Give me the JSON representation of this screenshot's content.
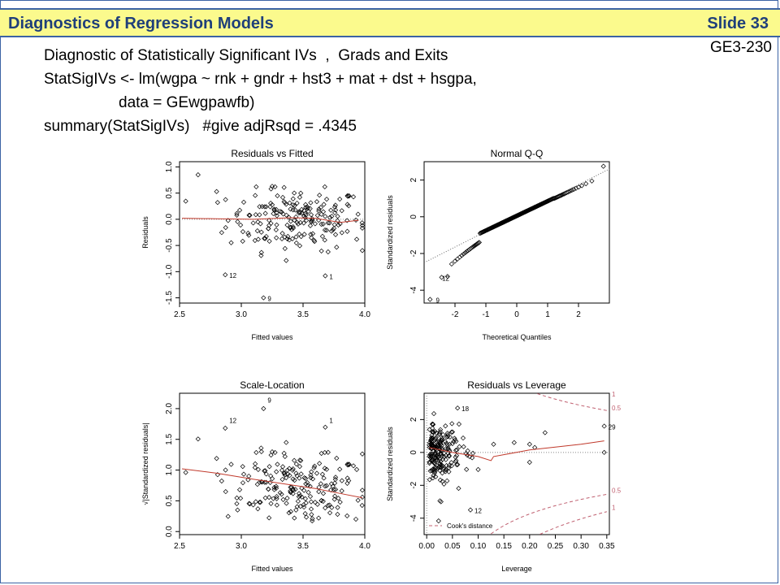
{
  "header": {
    "title": "Diagnostics of Regression Models",
    "slide": "Slide 33",
    "code_label": "GE3-230"
  },
  "code": {
    "line1": "Diagnostic of Statistically Significant IVs  ,  Grads and Exits",
    "line2": "StatSigIVs <- lm(wgpa ~ rnk + gndr + hst3 + mat + dst + hsgpa,",
    "line3": "data = GEwgpawfb)",
    "line4": "summary(StatSigIVs)   #give adjRsqd = .4345"
  },
  "colors": {
    "accent": "#1f3f7a",
    "title_bg": "#fbfa8d",
    "border": "#3b63a4",
    "smooth": "#c0392b",
    "cook": "#c06070"
  },
  "chart_data": [
    {
      "type": "scatter",
      "title": "Residuals vs Fitted",
      "xlabel": "Fitted values",
      "ylabel": "Residuals",
      "xlim": [
        2.5,
        4.0
      ],
      "ylim": [
        -1.6,
        1.1
      ],
      "xticks": [
        "2.5",
        "3.0",
        "3.5",
        "4.0"
      ],
      "yticks": [
        "-1.5",
        "-1.0",
        "-0.5",
        "0.0",
        "0.5",
        "1.0"
      ],
      "reference_line": 0,
      "point_labels": [
        {
          "label": "12",
          "x": 2.87,
          "y": -1.06
        },
        {
          "label": "9",
          "x": 3.18,
          "y": -1.5
        },
        {
          "label": "1",
          "x": 3.68,
          "y": -1.08
        }
      ],
      "smooth": [
        [
          2.52,
          0.02
        ],
        [
          2.8,
          0.01
        ],
        [
          3.1,
          0.0
        ],
        [
          3.4,
          0.03
        ],
        [
          3.6,
          0.02
        ],
        [
          3.8,
          -0.06
        ],
        [
          3.95,
          -0.02
        ]
      ]
    },
    {
      "type": "scatter",
      "title": "Normal Q-Q",
      "xlabel": "Theoretical Quantiles",
      "ylabel": "Standardized residuals",
      "xlim": [
        -3.0,
        3.0
      ],
      "ylim": [
        -4.7,
        3.0
      ],
      "xticks": [
        "-2",
        "-1",
        "0",
        "1",
        "2"
      ],
      "yticks": [
        "-4",
        "-2",
        "0",
        "2"
      ],
      "reference_line_slope": 0.85,
      "point_labels": [
        {
          "label": "12",
          "x": -2.55,
          "y": -3.3
        },
        {
          "label": "9",
          "x": -2.75,
          "y": -4.5
        }
      ]
    },
    {
      "type": "scatter",
      "title": "Scale-Location",
      "xlabel": "Fitted values",
      "ylabel": "√|Standardized residuals|",
      "xlim": [
        2.5,
        4.0
      ],
      "ylim": [
        -0.05,
        2.25
      ],
      "xticks": [
        "2.5",
        "3.0",
        "3.5",
        "4.0"
      ],
      "yticks": [
        "0.0",
        "0.5",
        "1.0",
        "1.5",
        "2.0"
      ],
      "point_labels": [
        {
          "label": "9",
          "x": 3.18,
          "y": 2.15
        },
        {
          "label": "12",
          "x": 2.87,
          "y": 1.82
        },
        {
          "label": "1",
          "x": 3.68,
          "y": 1.82
        }
      ],
      "smooth": [
        [
          2.52,
          1.02
        ],
        [
          2.8,
          0.95
        ],
        [
          3.1,
          0.85
        ],
        [
          3.4,
          0.76
        ],
        [
          3.6,
          0.7
        ],
        [
          3.8,
          0.62
        ],
        [
          3.98,
          0.55
        ]
      ]
    },
    {
      "type": "scatter",
      "title": "Residuals vs Leverage",
      "xlabel": "Leverage",
      "ylabel": "Standardized residuals",
      "xlim": [
        -0.005,
        0.355
      ],
      "ylim": [
        -5.0,
        3.6
      ],
      "xticks": [
        "0.00",
        "0.05",
        "0.10",
        "0.15",
        "0.20",
        "0.25",
        "0.30",
        "0.35"
      ],
      "yticks": [
        "-4",
        "-2",
        "0",
        "2"
      ],
      "legend": "Cook's distance",
      "cook_labels": [
        "1",
        "0.5",
        "0.5",
        "1"
      ],
      "point_labels": [
        {
          "label": "18",
          "x": 0.06,
          "y": 2.7
        },
        {
          "label": "29",
          "x": 0.345,
          "y": 1.6
        },
        {
          "label": "12",
          "x": 0.085,
          "y": -3.5
        }
      ],
      "smooth": [
        [
          0.005,
          0.3
        ],
        [
          0.05,
          0.0
        ],
        [
          0.1,
          -0.25
        ],
        [
          0.125,
          -0.5
        ],
        [
          0.13,
          -0.25
        ],
        [
          0.2,
          0.15
        ],
        [
          0.3,
          0.5
        ],
        [
          0.345,
          0.7
        ]
      ]
    }
  ]
}
